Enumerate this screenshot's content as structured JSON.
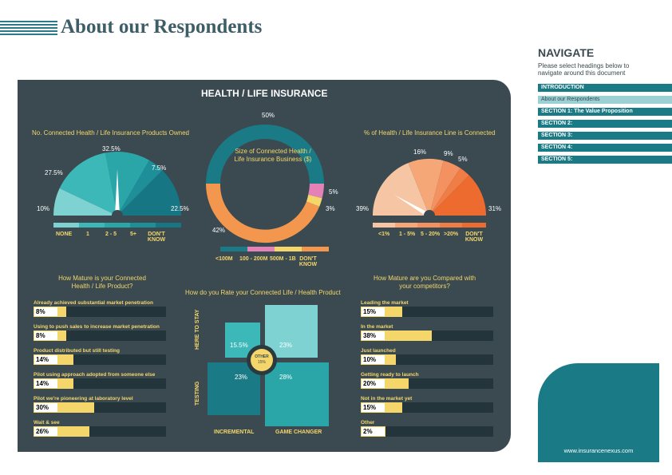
{
  "header": {
    "title": "About our Respondents"
  },
  "panel": {
    "title": "HEALTH / LIFE INSURANCE",
    "left_gauge": {
      "title": "No. Connected Health / Life Insurance Products Owned",
      "values": [
        "10%",
        "27.5%",
        "32.5%",
        "7.5%",
        "22.5%"
      ],
      "legend": [
        "NONE",
        "1",
        "2 - 5",
        "5+",
        "DON'T KNOW"
      ],
      "colors": [
        "#7ed3d2",
        "#3db8b8",
        "#2aa5a8",
        "#1e8e99",
        "#177684"
      ]
    },
    "donut": {
      "center": "Size of Connected Health / Life Insurance Business ($)",
      "labels": [
        "50%",
        "5%",
        "3%",
        "42%"
      ],
      "legend": [
        "<100M",
        "100 - 200M",
        "500M - 1B",
        "DON'T KNOW"
      ],
      "colors": [
        "#1a7b87",
        "#e481b7",
        "#f5d66a",
        "#f4974e"
      ]
    },
    "right_gauge": {
      "title": "% of Health / Life Insurance Line is Connected",
      "values": [
        "39%",
        "16%",
        "9%",
        "5%",
        "31%"
      ],
      "legend": [
        "<1%",
        "1 - 5%",
        "5 - 20%",
        ">20%",
        "DON'T KNOW"
      ],
      "colors": [
        "#f6c6a4",
        "#f5a777",
        "#f39160",
        "#f07d45",
        "#ed6b2f"
      ]
    },
    "maturity": {
      "title": "How Mature is your Connected Health / Life Product?",
      "rows": [
        {
          "label": "Already achieved substantial market penetration",
          "value": "8%",
          "pct": 8
        },
        {
          "label": "Using to push sales to increase market penetration",
          "value": "8%",
          "pct": 8
        },
        {
          "label": "Product distributed but still testing",
          "value": "14%",
          "pct": 14
        },
        {
          "label": "Pilot using approach adopted from someone else",
          "value": "14%",
          "pct": 14
        },
        {
          "label": "Pilot we're pioneering at laboratory level",
          "value": "30%",
          "pct": 30
        },
        {
          "label": "Wait & see",
          "value": "26%",
          "pct": 26
        }
      ]
    },
    "matrix": {
      "title": "How do you Rate your Connected Life / Health Product",
      "y_labels": [
        "HERE TO STAY",
        "TESTING"
      ],
      "x_labels": [
        "INCREMENTAL",
        "GAME CHANGER"
      ],
      "cells": [
        "15.5%",
        "23%",
        "23%",
        "28%"
      ],
      "center": "OTHER",
      "center_value": "15%"
    },
    "competitors": {
      "title": "How Mature are you Compared with your competitors?",
      "rows": [
        {
          "label": "Leading the market",
          "value": "15%",
          "pct": 15
        },
        {
          "label": "In the market",
          "value": "38%",
          "pct": 38
        },
        {
          "label": "Just launched",
          "value": "10%",
          "pct": 10
        },
        {
          "label": "Getting ready to launch",
          "value": "20%",
          "pct": 20
        },
        {
          "label": "Not in the market yet",
          "value": "15%",
          "pct": 15
        },
        {
          "label": "Other",
          "value": "2%",
          "pct": 2
        }
      ]
    }
  },
  "navigate": {
    "title": "NAVIGATE",
    "desc": "Please select headings below to navigate around this document",
    "items": [
      "INTRODUCTION",
      "About our Respondents",
      "SECTION 1: The Value Proposition",
      "SECTION 2:",
      "SECTION 3:",
      "SECTION 4:",
      "SECTION 5:"
    ],
    "url": "www.insurancenexus.com"
  }
}
